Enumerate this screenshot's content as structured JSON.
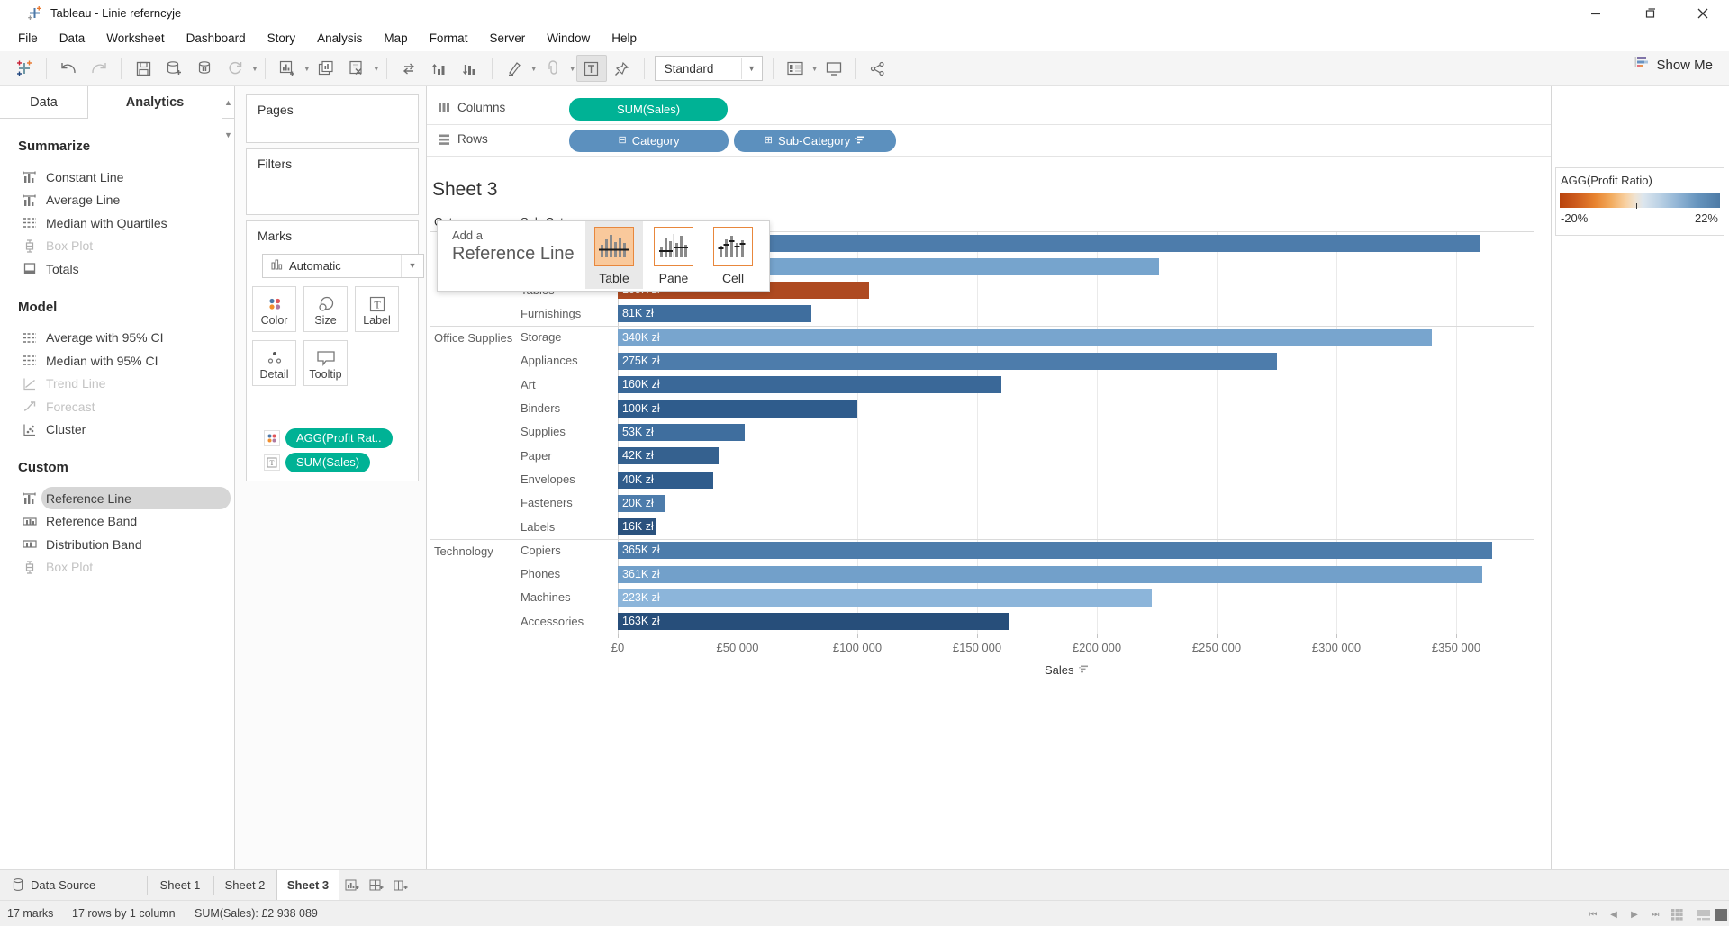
{
  "window": {
    "title": "Tableau - Linie referncyje"
  },
  "menu": {
    "items": [
      "File",
      "Data",
      "Worksheet",
      "Dashboard",
      "Story",
      "Analysis",
      "Map",
      "Format",
      "Server",
      "Window",
      "Help"
    ]
  },
  "toolbar": {
    "view_mode": "Standard",
    "show_me_label": "Show Me",
    "items": [
      {
        "icon": "tableau-logo"
      },
      {
        "sep": true
      },
      {
        "icon": "undo-arrow"
      },
      {
        "icon": "redo-arrow"
      },
      {
        "sep": true
      },
      {
        "icon": "save"
      },
      {
        "icon": "new-data-source"
      },
      {
        "icon": "pause-updates"
      },
      {
        "icon": "auto-updates",
        "caret": true
      },
      {
        "sep": true
      },
      {
        "icon": "new-worksheet",
        "caret": true
      },
      {
        "icon": "duplicate-sheet"
      },
      {
        "icon": "clear-sheet",
        "caret": true
      },
      {
        "sep": true
      },
      {
        "icon": "swap-rows-columns"
      },
      {
        "icon": "sort-ascending"
      },
      {
        "icon": "sort-descending"
      },
      {
        "sep": true
      },
      {
        "icon": "highlight",
        "caret": true
      },
      {
        "icon": "group-members",
        "caret": true
      },
      {
        "icon": "show-mark-labels",
        "pressed": true
      },
      {
        "icon": "fix-axes"
      },
      {
        "sep": true
      },
      {
        "combo": true
      },
      {
        "sep": true
      },
      {
        "icon": "show-hide-cards",
        "caret": true
      },
      {
        "icon": "presentation-mode"
      },
      {
        "sep": true
      },
      {
        "icon": "share-workbook"
      }
    ]
  },
  "sidebar": {
    "tabs": {
      "data": "Data",
      "analytics": "Analytics"
    },
    "sections": [
      {
        "title": "Summarize",
        "items": [
          {
            "label": "Constant Line",
            "icon": "constant-line"
          },
          {
            "label": "Average Line",
            "icon": "average-line"
          },
          {
            "label": "Median with Quartiles",
            "icon": "median-quartiles"
          },
          {
            "label": "Box Plot",
            "icon": "box-plot",
            "disabled": true
          },
          {
            "label": "Totals",
            "icon": "totals"
          }
        ]
      },
      {
        "title": "Model",
        "items": [
          {
            "label": "Average with 95% CI",
            "icon": "average-ci"
          },
          {
            "label": "Median with 95% CI",
            "icon": "median-ci"
          },
          {
            "label": "Trend Line",
            "icon": "trend-line",
            "disabled": true
          },
          {
            "label": "Forecast",
            "icon": "forecast",
            "disabled": true
          },
          {
            "label": "Cluster",
            "icon": "cluster"
          }
        ]
      },
      {
        "title": "Custom",
        "items": [
          {
            "label": "Reference Line",
            "icon": "reference-line",
            "highlighted": true
          },
          {
            "label": "Reference Band",
            "icon": "reference-band"
          },
          {
            "label": "Distribution Band",
            "icon": "distribution-band"
          },
          {
            "label": "Box Plot",
            "icon": "box-plot",
            "disabled": true
          }
        ]
      }
    ]
  },
  "cards": {
    "pages_title": "Pages",
    "filters_title": "Filters",
    "marks": {
      "title": "Marks",
      "mark_type": "Automatic",
      "buttons": [
        {
          "label": "Color",
          "icon": "color-dots"
        },
        {
          "label": "Size",
          "icon": "size-circles"
        },
        {
          "label": "Label",
          "icon": "text-label"
        },
        {
          "label": "Detail",
          "icon": "detail-dots"
        },
        {
          "label": "Tooltip",
          "icon": "tooltip-bubble"
        }
      ],
      "pills": [
        {
          "label": "AGG(Profit Rat..",
          "icon": "color-dots"
        },
        {
          "label": "SUM(Sales)",
          "icon": "text-label"
        }
      ]
    }
  },
  "shelves": {
    "columns": {
      "label": "Columns",
      "pill": "SUM(Sales)"
    },
    "rows": {
      "label": "Rows",
      "pill1": "Category",
      "pill2": "Sub-Category"
    }
  },
  "sheet": {
    "title": "Sheet 3",
    "col_header1": "Category",
    "col_header2": "Sub-Category"
  },
  "overlay": {
    "line1": "Add a",
    "line2": "Reference Line",
    "options": [
      {
        "label": "Table",
        "icon": "scope-table",
        "active": true
      },
      {
        "label": "Pane",
        "icon": "scope-pane",
        "active": false
      },
      {
        "label": "Cell",
        "icon": "scope-cell",
        "active": false
      }
    ]
  },
  "chart_data": {
    "type": "bar",
    "orientation": "horizontal",
    "title": "Sheet 3",
    "xlabel": "Sales",
    "x_ticks": [
      "£0",
      "£50 000",
      "£100 000",
      "£150 000",
      "£200 000",
      "£250 000",
      "£300 000",
      "£350 000"
    ],
    "x_tick_values": [
      0,
      50000,
      100000,
      150000,
      200000,
      250000,
      300000,
      350000
    ],
    "x_range": [
      0,
      382000
    ],
    "grid": true,
    "row_headers": [
      "Category",
      "Sub-Category"
    ],
    "groups": [
      {
        "label": "",
        "rows": [
          {
            "sub": "",
            "value": 360000,
            "bar_label": "",
            "color": "#4D7CAB"
          },
          {
            "sub": "",
            "value": 226000,
            "bar_label": "",
            "color": "#76A4CD"
          },
          {
            "sub": "Tables",
            "value": 105000,
            "bar_label": "105K zł",
            "color": "#AE4A21"
          },
          {
            "sub": "Furnishings",
            "value": 81000,
            "bar_label": "81K zł",
            "color": "#3F6E9E"
          }
        ]
      },
      {
        "label": "Office Supplies",
        "rows": [
          {
            "sub": "Storage",
            "value": 340000,
            "bar_label": "340K zł",
            "color": "#78A5CE"
          },
          {
            "sub": "Appliances",
            "value": 275000,
            "bar_label": "275K zł",
            "color": "#4D7CAB"
          },
          {
            "sub": "Art",
            "value": 160000,
            "bar_label": "160K zł",
            "color": "#3A6898"
          },
          {
            "sub": "Binders",
            "value": 100000,
            "bar_label": "100K zł",
            "color": "#2F5C8C"
          },
          {
            "sub": "Supplies",
            "value": 53000,
            "bar_label": "53K zł",
            "color": "#3F6E9E"
          },
          {
            "sub": "Paper",
            "value": 42000,
            "bar_label": "42K zł",
            "color": "#35618F"
          },
          {
            "sub": "Envelopes",
            "value": 40000,
            "bar_label": "40K zł",
            "color": "#2F5C8C"
          },
          {
            "sub": "Fasteners",
            "value": 20000,
            "bar_label": "20K zł",
            "color": "#4D7CAB"
          },
          {
            "sub": "Labels",
            "value": 16000,
            "bar_label": "16K zł",
            "color": "#2B527E"
          }
        ]
      },
      {
        "label": "Technology",
        "rows": [
          {
            "sub": "Copiers",
            "value": 365000,
            "bar_label": "365K zł",
            "color": "#4D7CAB"
          },
          {
            "sub": "Phones",
            "value": 361000,
            "bar_label": "361K zł",
            "color": "#72A0CA"
          },
          {
            "sub": "Machines",
            "value": 223000,
            "bar_label": "223K zł",
            "color": "#8CB5DA"
          },
          {
            "sub": "Accessories",
            "value": 163000,
            "bar_label": "163K zł",
            "color": "#274E7A"
          }
        ]
      }
    ]
  },
  "legend": {
    "title": "AGG(Profit Ratio)",
    "min_label": "-20%",
    "max_label": "22%",
    "neg_color": "#B8440E",
    "pos_color": "#4E7BA6"
  },
  "tabs_bar": {
    "data_source": "Data Source",
    "sheet1": "Sheet 1",
    "sheet2": "Sheet 2",
    "sheet3": "Sheet 3"
  },
  "status_bar": {
    "marks": "17 marks",
    "size": "17 rows by 1 column",
    "aggregate": "SUM(Sales): £2 938 089"
  }
}
